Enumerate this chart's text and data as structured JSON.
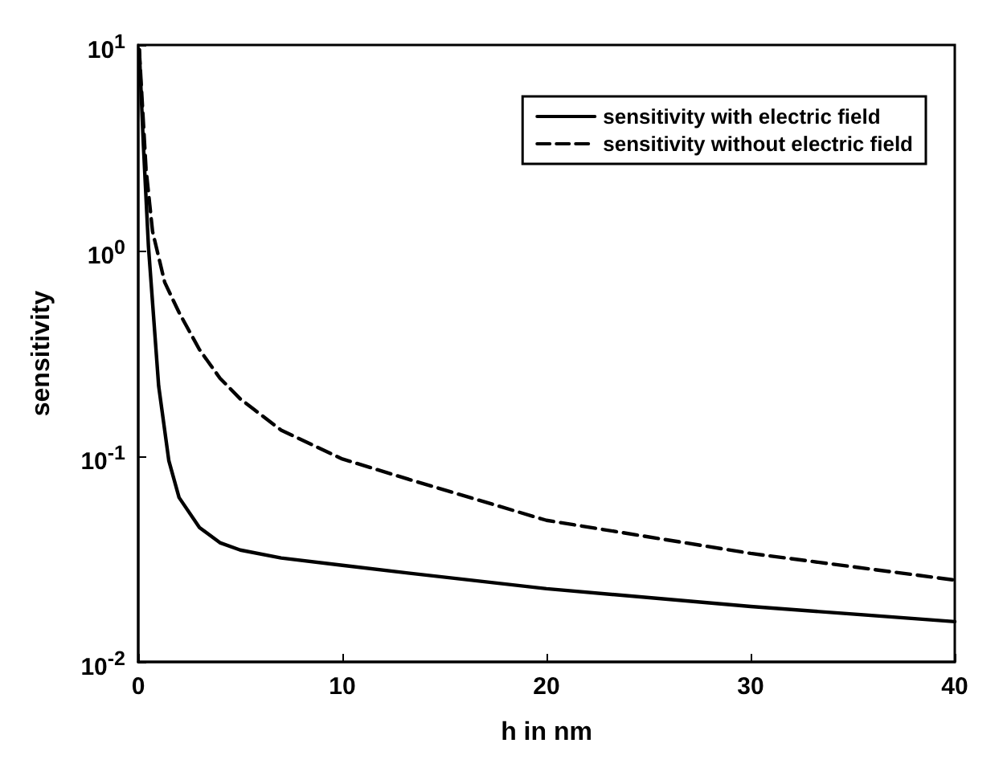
{
  "chart_data": {
    "type": "line",
    "xlabel": "h in nm",
    "ylabel": "sensitivity",
    "log": "y",
    "xlim": [
      0,
      40
    ],
    "xticks": [
      0,
      10,
      20,
      30,
      40
    ],
    "ylim": [
      0.01,
      10
    ],
    "yticks": [
      {
        "value": 0.01,
        "label": "10$^{-2}$"
      },
      {
        "value": 0.1,
        "label": "10$^{-1}$"
      },
      {
        "value": 1,
        "label": "10$^{0}$"
      },
      {
        "value": 10,
        "label": "10$^{1}$"
      }
    ],
    "grid": false,
    "legend": "top right",
    "series": [
      {
        "name": "sensitivity with electric field",
        "color": "#000000",
        "line_style": "solid",
        "x": [
          0.05,
          0.25,
          0.5,
          1,
          1.5,
          2,
          3,
          4,
          5,
          7,
          10,
          13.3,
          20,
          30,
          40
        ],
        "values": [
          9.5,
          3.3,
          1.05,
          0.22,
          0.095,
          0.063,
          0.045,
          0.038,
          0.035,
          0.032,
          0.0295,
          0.027,
          0.0227,
          0.0186,
          0.0157
        ]
      },
      {
        "name": "sensitivity without electric field",
        "color": "#000000",
        "line_style": "dashed",
        "x": [
          0.05,
          0.38,
          0.7,
          1.3,
          2,
          3,
          4,
          5,
          7,
          10,
          13.3,
          20,
          30,
          40
        ],
        "values": [
          9.5,
          2.5,
          1.24,
          0.7,
          0.5,
          0.33,
          0.24,
          0.19,
          0.134,
          0.097,
          0.077,
          0.0488,
          0.0337,
          0.025
        ]
      }
    ]
  }
}
